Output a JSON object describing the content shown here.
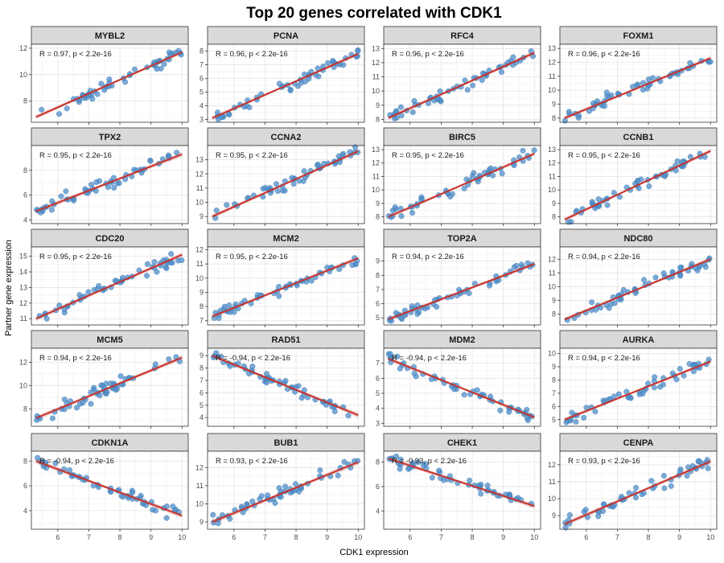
{
  "chart_data": {
    "type": "scatter",
    "title": "Top 20 genes correlated with CDK1",
    "xlabel": "CDK1 expression",
    "ylabel": "Partner gene expression",
    "x_ticks": [
      6,
      7,
      8,
      9,
      10
    ],
    "xlim": [
      5.15,
      10.2
    ],
    "grid": true,
    "trend": "linear fit with confidence band",
    "colors": {
      "points": "#4f8ec9",
      "fit_line": "#c8322b",
      "band": "#e2a5a5",
      "strip_fill": "#d9d9d9",
      "strip_border": "#333333"
    },
    "panels": [
      {
        "name": "MYBL2",
        "annotation": "R = 0.97, p < 2.2e-16",
        "ylim": [
          6.4,
          12.3
        ],
        "y_ticks": [
          8,
          10,
          12
        ],
        "fit": [
          [
            5.3,
            6.8
          ],
          [
            10.0,
            11.7
          ]
        ],
        "band_halfwidth": 0.15
      },
      {
        "name": "PCNA",
        "annotation": "R = 0.96, p < 2.2e-16",
        "ylim": [
          2.8,
          8.5
        ],
        "y_ticks": [
          3,
          4,
          5,
          6,
          7,
          8
        ],
        "fit": [
          [
            5.3,
            3.1
          ],
          [
            10.0,
            7.8
          ]
        ],
        "band_halfwidth": 0.15
      },
      {
        "name": "RFC4",
        "annotation": "R = 0.96, p < 2.2e-16",
        "ylim": [
          7.8,
          13.3
        ],
        "y_ticks": [
          8,
          9,
          10,
          11,
          12,
          13
        ],
        "fit": [
          [
            5.3,
            8.1
          ],
          [
            10.0,
            12.7
          ]
        ],
        "band_halfwidth": 0.15
      },
      {
        "name": "FOXM1",
        "annotation": "R = 0.96, p < 2.2e-16",
        "ylim": [
          7.7,
          13.3
        ],
        "y_ticks": [
          8,
          9,
          10,
          11,
          12,
          13
        ],
        "fit": [
          [
            5.3,
            8.0
          ],
          [
            10.0,
            12.3
          ]
        ],
        "band_halfwidth": 0.15
      },
      {
        "name": "TPX2",
        "annotation": "R = 0.95, p < 2.2e-16",
        "ylim": [
          3.7,
          10.0
        ],
        "y_ticks": [
          4,
          6,
          8
        ],
        "fit": [
          [
            5.3,
            4.7
          ],
          [
            10.0,
            9.3
          ]
        ],
        "band_halfwidth": 0.2
      },
      {
        "name": "CCNA2",
        "annotation": "R = 0.95, p < 2.2e-16",
        "ylim": [
          8.5,
          14.0
        ],
        "y_ticks": [
          9,
          10,
          11,
          12,
          13
        ],
        "fit": [
          [
            5.3,
            9.0
          ],
          [
            10.0,
            13.6
          ]
        ],
        "band_halfwidth": 0.15
      },
      {
        "name": "BIRC5",
        "annotation": "R = 0.95, p < 2.2e-16",
        "ylim": [
          7.5,
          13.3
        ],
        "y_ticks": [
          8,
          9,
          10,
          11,
          12,
          13
        ],
        "fit": [
          [
            5.3,
            8.0
          ],
          [
            10.0,
            12.7
          ]
        ],
        "band_halfwidth": 0.15
      },
      {
        "name": "CCNB1",
        "annotation": "R = 0.95, p < 2.2e-16",
        "ylim": [
          7.5,
          13.3
        ],
        "y_ticks": [
          8,
          9,
          10,
          11,
          12,
          13
        ],
        "fit": [
          [
            5.3,
            7.8
          ],
          [
            10.0,
            12.9
          ]
        ],
        "band_halfwidth": 0.15
      },
      {
        "name": "CDC20",
        "annotation": "R = 0.95, p < 2.2e-16",
        "ylim": [
          10.6,
          15.6
        ],
        "y_ticks": [
          11,
          12,
          13,
          14,
          15
        ],
        "fit": [
          [
            5.3,
            11.0
          ],
          [
            10.0,
            15.1
          ]
        ],
        "band_halfwidth": 0.15
      },
      {
        "name": "MCM2",
        "annotation": "R = 0.95, p < 2.2e-16",
        "ylim": [
          6.7,
          12.2
        ],
        "y_ticks": [
          7,
          8,
          9,
          10,
          11,
          12
        ],
        "fit": [
          [
            5.3,
            7.3
          ],
          [
            10.0,
            11.4
          ]
        ],
        "band_halfwidth": 0.15
      },
      {
        "name": "TOP2A",
        "annotation": "R = 0.94, p < 2.2e-16",
        "ylim": [
          4.5,
          10.0
        ],
        "y_ticks": [
          5,
          6,
          7,
          8,
          9
        ],
        "fit": [
          [
            5.3,
            4.9
          ],
          [
            10.0,
            8.8
          ]
        ],
        "band_halfwidth": 0.15
      },
      {
        "name": "NDC80",
        "annotation": "R = 0.94, p < 2.2e-16",
        "ylim": [
          7.2,
          12.9
        ],
        "y_ticks": [
          8,
          9,
          10,
          11,
          12
        ],
        "fit": [
          [
            5.3,
            7.6
          ],
          [
            10.0,
            12.0
          ]
        ],
        "band_halfwidth": 0.15
      },
      {
        "name": "MCM5",
        "annotation": "R = 0.94, p < 2.2e-16",
        "ylim": [
          6.5,
          13.2
        ],
        "y_ticks": [
          8,
          10,
          12
        ],
        "fit": [
          [
            5.3,
            7.2
          ],
          [
            10.0,
            12.4
          ]
        ],
        "band_halfwidth": 0.2
      },
      {
        "name": "RAD51",
        "annotation": "R = -0.94, p < 2.2e-16",
        "ylim": [
          3.3,
          9.6
        ],
        "y_ticks": [
          4,
          5,
          6,
          7,
          8,
          9
        ],
        "fit": [
          [
            5.3,
            9.0
          ],
          [
            10.0,
            4.2
          ]
        ],
        "band_halfwidth": 0.2
      },
      {
        "name": "MDM2",
        "annotation": "R = -0.94, p < 2.2e-16",
        "ylim": [
          2.8,
          8.0
        ],
        "y_ticks": [
          3,
          4,
          5,
          6,
          7
        ],
        "fit": [
          [
            5.3,
            7.3
          ],
          [
            10.0,
            3.4
          ]
        ],
        "band_halfwidth": 0.15
      },
      {
        "name": "AURKA",
        "annotation": "R = 0.94, p < 2.2e-16",
        "ylim": [
          4.5,
          10.4
        ],
        "y_ticks": [
          5,
          6,
          7,
          8,
          9,
          10
        ],
        "fit": [
          [
            5.3,
            5.0
          ],
          [
            10.0,
            9.4
          ]
        ],
        "band_halfwidth": 0.15
      },
      {
        "name": "CDKN1A",
        "annotation": "R = -0.94, p < 2.2e-16",
        "ylim": [
          2.5,
          8.8
        ],
        "y_ticks": [
          4,
          6,
          8
        ],
        "fit": [
          [
            5.3,
            8.0
          ],
          [
            10.0,
            3.6
          ]
        ],
        "band_halfwidth": 0.2
      },
      {
        "name": "BUB1",
        "annotation": "R = 0.93, p < 2.2e-16",
        "ylim": [
          8.6,
          12.9
        ],
        "y_ticks": [
          9,
          10,
          11,
          12
        ],
        "fit": [
          [
            5.3,
            9.0
          ],
          [
            10.0,
            12.3
          ]
        ],
        "band_halfwidth": 0.15
      },
      {
        "name": "CHEK1",
        "annotation": "R = -0.93, p < 2.2e-16",
        "ylim": [
          2.5,
          8.9
        ],
        "y_ticks": [
          4,
          6,
          8
        ],
        "fit": [
          [
            5.3,
            8.3
          ],
          [
            10.0,
            4.4
          ]
        ],
        "band_halfwidth": 0.2
      },
      {
        "name": "CENPA",
        "annotation": "R = 0.93, p < 2.2e-16",
        "ylim": [
          8.2,
          12.8
        ],
        "y_ticks": [
          9,
          10,
          11,
          12
        ],
        "fit": [
          [
            5.3,
            8.5
          ],
          [
            10.0,
            12.2
          ]
        ],
        "band_halfwidth": 0.15
      }
    ]
  }
}
